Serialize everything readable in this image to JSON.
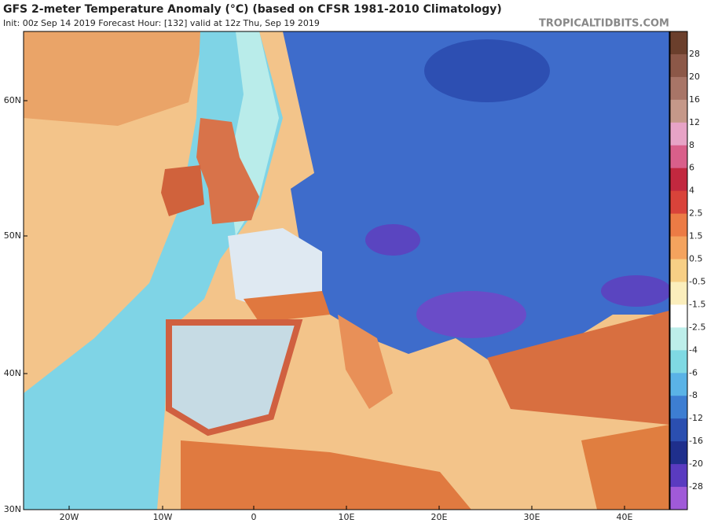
{
  "header": {
    "title": "GFS 2-meter Temperature Anomaly (°C) (based on CFSR 1981-2010 Climatology)",
    "subtitle": "Init: 00z Sep 14 2019   Forecast Hour: [132]   valid at 12z Thu, Sep 19 2019",
    "watermark": "TROPICALTIDBITS.COM"
  },
  "map": {
    "lat_labels": [
      "60N",
      "50N",
      "40N",
      "30N"
    ],
    "lon_labels": [
      "20W",
      "10W",
      "0",
      "10E",
      "20E",
      "30E",
      "40E"
    ]
  },
  "colorbar": {
    "labels": [
      "28",
      "20",
      "16",
      "12",
      "8",
      "6",
      "4",
      "2.5",
      "1.5",
      "0.5",
      "-0.5",
      "-1.5",
      "-2.5",
      "-4",
      "-6",
      "-8",
      "-12",
      "-16",
      "-20",
      "-28"
    ],
    "colors": [
      "#6b3f2c",
      "#8c5848",
      "#a87567",
      "#c59889",
      "#e7a3c6",
      "#d95f8a",
      "#c2283f",
      "#d9433a",
      "#ec7b45",
      "#f4a35e",
      "#f7cf85",
      "#fbeebc",
      "#ffffff",
      "#bdeeea",
      "#7fd9e3",
      "#5ab3e6",
      "#3d7ed2",
      "#2b4fb0",
      "#1f2f8c",
      "#5a3bc0",
      "#a05ad8"
    ]
  }
}
